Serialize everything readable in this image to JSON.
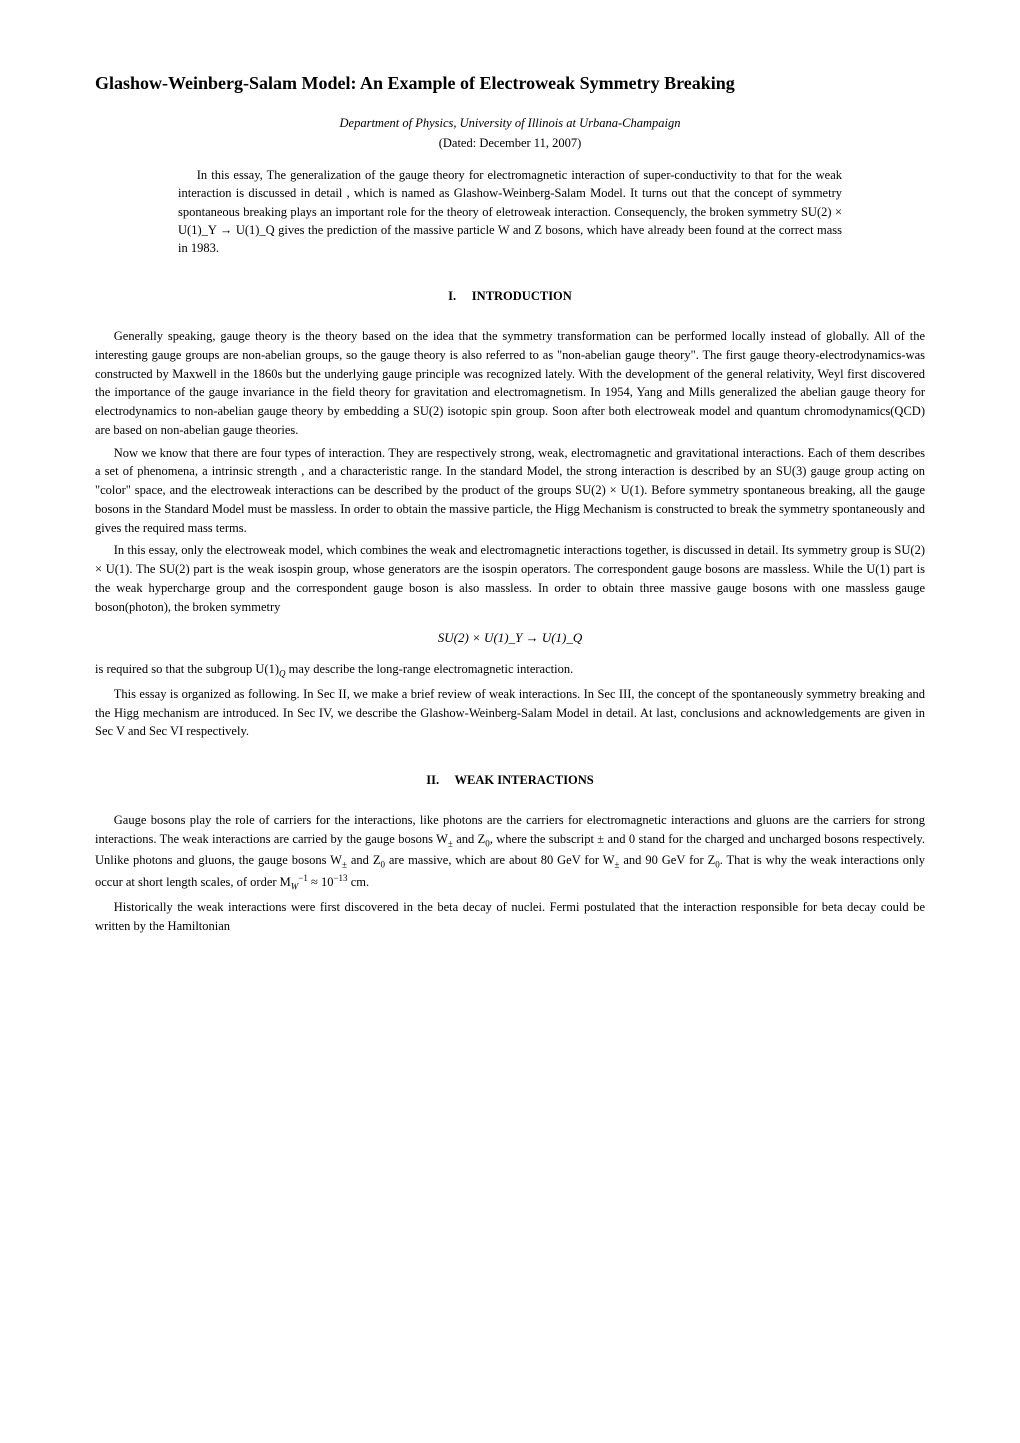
{
  "title": "Glashow-Weinberg-Salam Model: An Example of Electroweak Symmetry Breaking",
  "affiliation": "Department of Physics, University of Illinois at Urbana-Champaign",
  "dated_open": "(Dated: ",
  "date": "December 11, 2007",
  "dated_close": ")",
  "abstract1": "In this essay, The generalization of the gauge theory for electromagnetic interaction of super-conductivity to that for the weak interaction is discussed in detail , which is named as Glashow-Weinberg-Salam Model. It turns out that the concept of symmetry spontaneous breaking plays an important role for the theory of eletroweak interaction. Consequencly, the broken symmetry SU(2) × U(1)_Y → U(1)_Q gives the prediction of the massive particle W and Z bosons, which have already been found at the correct mass in 1983.",
  "section1_number": "I.",
  "section1_title": "INTRODUCTION",
  "intro_p1": "Generally speaking, gauge theory is the theory based on the idea that the symmetry transformation can be performed locally instead of globally. All of the interesting gauge groups are non-abelian groups, so the gauge theory is also referred to as \"non-abelian gauge theory\". The first gauge theory-electrodynamics-was constructed by Maxwell in the 1860s but the underlying gauge principle was recognized lately. With the development of the general relativity, Weyl first discovered the importance of the gauge invariance in the field theory for gravitation and electromagnetism. In 1954, Yang and Mills generalized the abelian gauge theory for electrodynamics to non-abelian gauge theory by embedding a SU(2) isotopic spin group. Soon after both electroweak model and quantum chromodynamics(QCD) are based on non-abelian gauge theories.",
  "intro_p2": "Now we know that there are four types of interaction. They are respectively strong, weak, electromagnetic and gravitational interactions. Each of them describes a set of phenomena, a intrinsic strength , and a characteristic range. In the standard Model, the strong interaction is described by an SU(3) gauge group acting on \"color\" space, and the electroweak interactions can be described by the product of the groups SU(2) × U(1). Before symmetry spontaneous breaking, all the gauge bosons in the Standard Model must be massless. In order to obtain the massive particle, the Higg Mechanism is constructed to break the symmetry spontaneously and gives the required mass terms.",
  "intro_p3": "In this essay, only the electroweak model, which combines the weak and electromagnetic interactions together, is discussed in detail. Its symmetry group is SU(2) × U(1). The SU(2) part is the weak isospin group, whose generators are the isospin operators. The correspondent gauge bosons are massless. While the U(1) part is the weak hypercharge group and the correspondent gauge boson is also massless. In order to obtain three massive gauge bosons with one massless gauge boson(photon), the broken symmetry",
  "display_math1": "SU(2) × U(1)_Y → U(1)_Q",
  "intro_p4_a": "is required so that the subgroup U(1)",
  "intro_p4_b": " may describe the long-range electromagnetic interaction.",
  "intro_p5": "This essay is organized as following. In Sec II, we make a brief review of weak interactions. In Sec III, the concept of the spontaneously symmetry breaking and the Higg mechanism are introduced. In Sec IV, we describe the Glashow-Weinberg-Salam Model in detail. At last, conclusions and acknowledgements are given in Sec V and Sec VI respectively.",
  "section2_number": "II.",
  "section2_title": "WEAK INTERACTIONS",
  "weak_p1_a": "Gauge bosons play the role of carriers for the interactions, like photons are the carriers for electromagnetic interactions and gluons are the carriers for strong interactions. The weak interactions are carried by the gauge bosons W",
  "weak_p1_b": " and Z",
  "weak_p1_c": ", where the subscript ± and 0 stand for the charged and uncharged bosons respectively. Unlike photons and gluons, the gauge bosons W",
  "weak_p1_d": " and Z",
  "weak_p1_e": " are massive, which are about 80 GeV for W",
  "weak_p1_f": " and 90 GeV for Z",
  "weak_p1_g": ". That is why the weak interactions only occur at short length scales, of order M",
  "weak_p1_h": " ≈ 10",
  "weak_p1_i": " cm.",
  "weak_p2": "Historically the weak interactions were first discovered in the beta decay of nuclei. Fermi postulated that the interaction responsible for beta decay could be written by the Hamiltonian",
  "sub_pm": "±",
  "sub_0": "0",
  "sub_W": "W",
  "sub_Q": "Q",
  "sup_neg1": "−1",
  "sup_neg13": "−13"
}
